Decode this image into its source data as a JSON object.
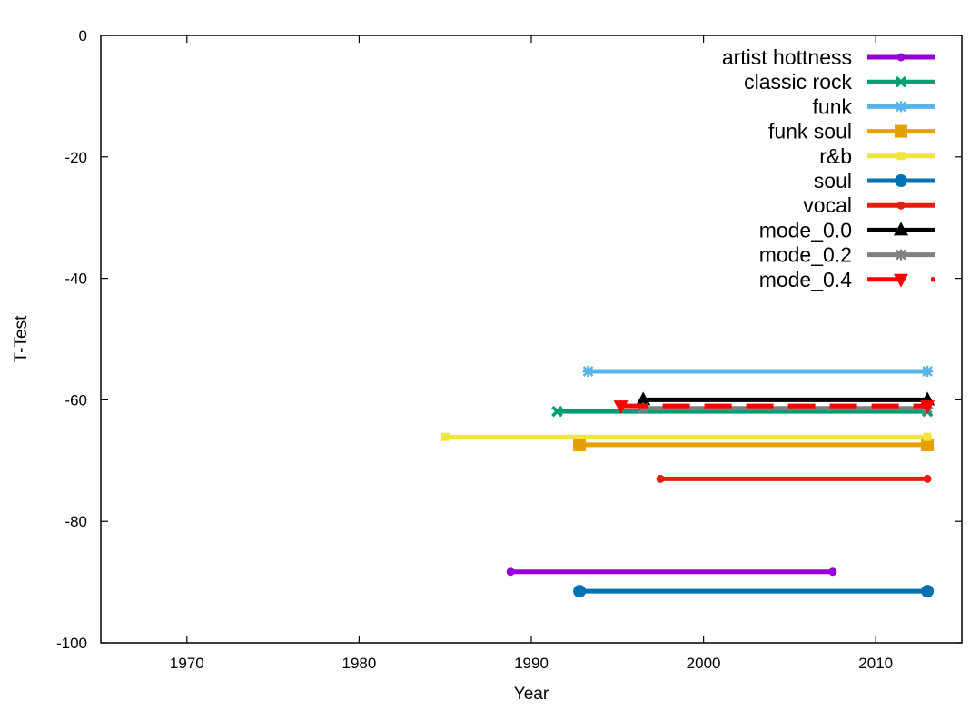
{
  "chart_data": {
    "type": "line",
    "title": "",
    "xlabel": "Year",
    "ylabel": "T-Test",
    "xlim": [
      1965,
      2015
    ],
    "ylim": [
      -100,
      0
    ],
    "xticks": [
      1970,
      1980,
      1990,
      2000,
      2010
    ],
    "yticks": [
      0,
      -20,
      -40,
      -60,
      -80,
      -100
    ],
    "xtick_labels": [
      "1970",
      "1980",
      "1990",
      "2000",
      "2010"
    ],
    "ytick_labels": [
      "0",
      "-20",
      "-40",
      "-60",
      "-80",
      "-100"
    ],
    "grid": false,
    "legend_position": "top-right",
    "series": [
      {
        "name": "artist hottness",
        "color": "#9400d3",
        "marker": "circle-small",
        "dash": false,
        "points": [
          [
            1988.8,
            -88.3
          ],
          [
            2007.5,
            -88.3
          ]
        ]
      },
      {
        "name": "classic rock",
        "color": "#009e73",
        "marker": "x",
        "dash": false,
        "points": [
          [
            1991.5,
            -61.9
          ],
          [
            2013,
            -61.9
          ]
        ]
      },
      {
        "name": "funk",
        "color": "#56b4e9",
        "marker": "star",
        "dash": false,
        "points": [
          [
            1993.3,
            -55.3
          ],
          [
            2013,
            -55.3
          ]
        ]
      },
      {
        "name": "funk soul",
        "color": "#e69f00",
        "marker": "square",
        "dash": false,
        "points": [
          [
            1992.8,
            -67.4
          ],
          [
            2013,
            -67.4
          ]
        ]
      },
      {
        "name": "r&b",
        "color": "#f0e442",
        "marker": "square-small",
        "dash": false,
        "points": [
          [
            1985,
            -66.1
          ],
          [
            2013,
            -66.1
          ]
        ]
      },
      {
        "name": "soul",
        "color": "#0072b2",
        "marker": "circle",
        "dash": false,
        "points": [
          [
            1992.8,
            -91.5
          ],
          [
            2013,
            -91.5
          ]
        ]
      },
      {
        "name": "vocal",
        "color": "#e51e10",
        "marker": "circle-small",
        "dash": false,
        "points": [
          [
            1997.5,
            -73.0
          ],
          [
            2013,
            -73.0
          ]
        ]
      },
      {
        "name": "mode_0.0",
        "color": "#000000",
        "marker": "triangle-up",
        "dash": false,
        "points": [
          [
            1996.5,
            -60.0
          ],
          [
            2013,
            -60.0
          ]
        ]
      },
      {
        "name": "mode_0.2",
        "color": "#808080",
        "marker": "star",
        "dash": false,
        "points": [
          [
            1996.5,
            -61.4
          ],
          [
            2013,
            -61.4
          ]
        ]
      },
      {
        "name": "mode_0.4",
        "color": "#ff0000",
        "marker": "triangle-down",
        "dash": true,
        "points": [
          [
            1995.2,
            -61.0
          ],
          [
            2013,
            -61.0
          ]
        ]
      }
    ]
  }
}
